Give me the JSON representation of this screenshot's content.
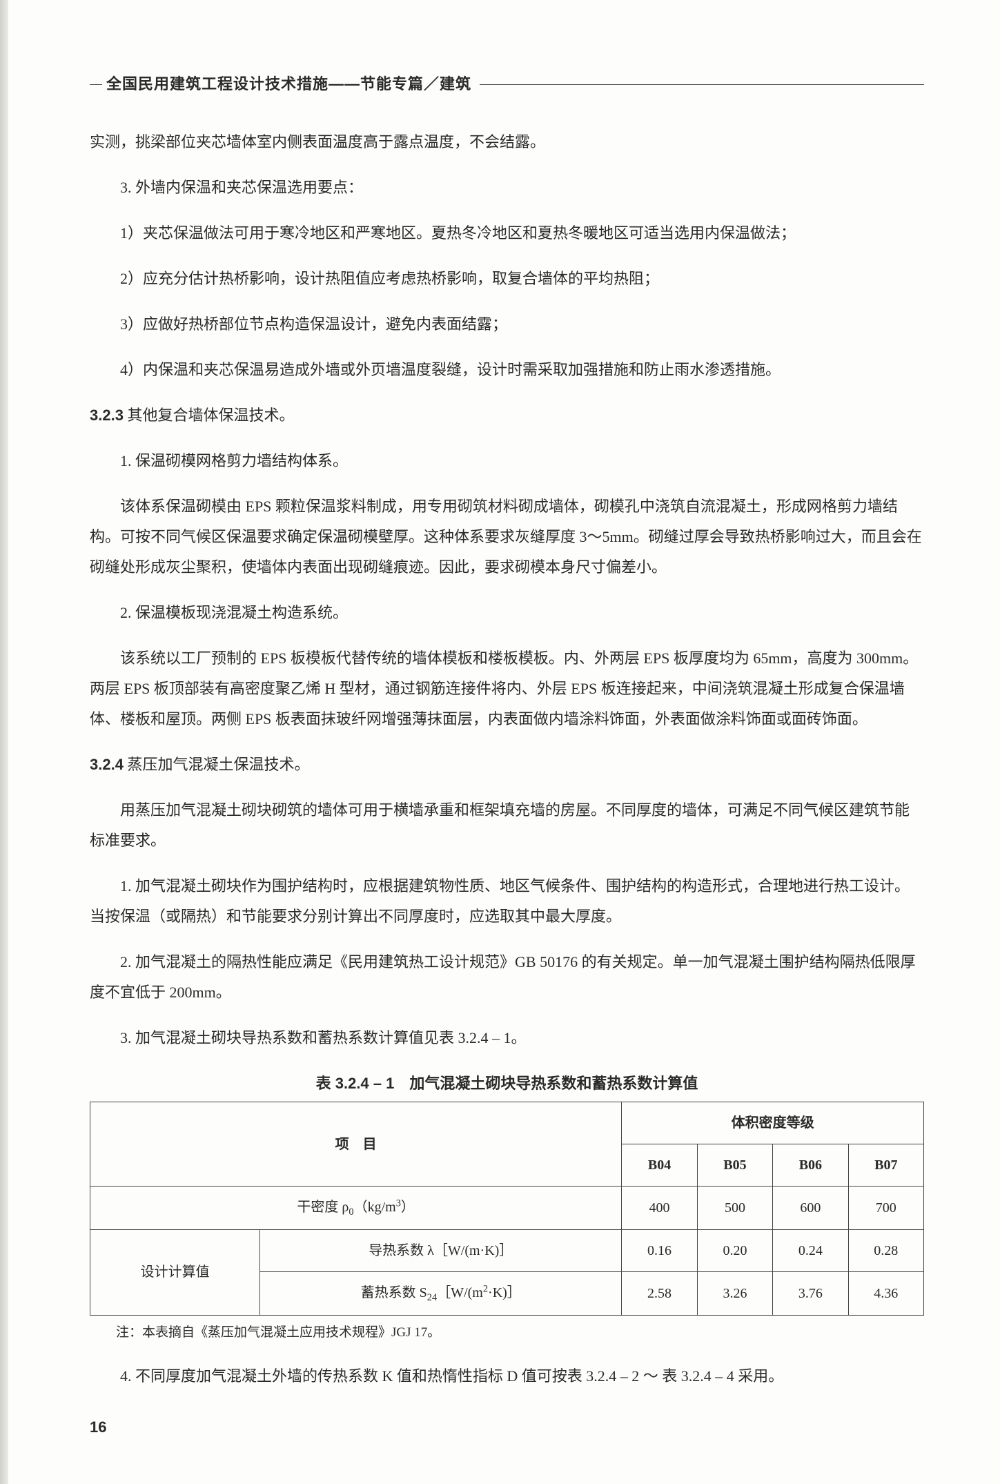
{
  "header": {
    "title": "全国民用建筑工程设计技术措施——节能专篇／建筑"
  },
  "body": {
    "p_intro": "实测，挑梁部位夹芯墙体室内侧表面温度高于露点温度，不会结露。",
    "p3": "3. 外墙内保温和夹芯保温选用要点：",
    "p3_1": "1）夹芯保温做法可用于寒冷地区和严寒地区。夏热冬冷地区和夏热冬暖地区可适当选用内保温做法；",
    "p3_2": "2）应充分估计热桥影响，设计热阻值应考虑热桥影响，取复合墙体的平均热阻；",
    "p3_3": "3）应做好热桥部位节点构造保温设计，避免内表面结露；",
    "p3_4": "4）内保温和夹芯保温易造成外墙或外页墙温度裂缝，设计时需采取加强措施和防止雨水渗透措施。",
    "s323_num": "3.2.3",
    "s323_title": " 其他复合墙体保温技术。",
    "s323_1": "1. 保温砌模网格剪力墙结构体系。",
    "s323_1_body": "该体系保温砌模由 EPS 颗粒保温浆料制成，用专用砌筑材料砌成墙体，砌模孔中浇筑自流混凝土，形成网格剪力墙结构。可按不同气候区保温要求确定保温砌模壁厚。这种体系要求灰缝厚度 3～5mm。砌缝过厚会导致热桥影响过大，而且会在砌缝处形成灰尘聚积，使墙体内表面出现砌缝痕迹。因此，要求砌模本身尺寸偏差小。",
    "s323_2": "2. 保温模板现浇混凝土构造系统。",
    "s323_2_body": "该系统以工厂预制的 EPS 板模板代替传统的墙体模板和楼板模板。内、外两层 EPS 板厚度均为 65mm，高度为 300mm。两层 EPS 板顶部装有高密度聚乙烯 H 型材，通过钢筋连接件将内、外层 EPS 板连接起来，中间浇筑混凝土形成复合保温墙体、楼板和屋顶。两侧 EPS 板表面抹玻纤网增强薄抹面层，内表面做内墙涂料饰面，外表面做涂料饰面或面砖饰面。",
    "s324_num": "3.2.4",
    "s324_title": " 蒸压加气混凝土保温技术。",
    "s324_intro": "用蒸压加气混凝土砌块砌筑的墙体可用于横墙承重和框架填充墙的房屋。不同厚度的墙体，可满足不同气候区建筑节能标准要求。",
    "s324_1": "1. 加气混凝土砌块作为围护结构时，应根据建筑物性质、地区气候条件、围护结构的构造形式，合理地进行热工设计。当按保温（或隔热）和节能要求分别计算出不同厚度时，应选取其中最大厚度。",
    "s324_2": "2. 加气混凝土的隔热性能应满足《民用建筑热工设计规范》GB 50176 的有关规定。单一加气混凝土围护结构隔热低限厚度不宜低于 200mm。",
    "s324_3": "3. 加气混凝土砌块导热系数和蓄热系数计算值见表 3.2.4 – 1。",
    "s324_4": "4. 不同厚度加气混凝土外墙的传热系数 K 值和热惰性指标 D 值可按表 3.2.4 – 2 ～ 表 3.2.4 – 4 采用。"
  },
  "table": {
    "title": "表 3.2.4 – 1　加气混凝土砌块导热系数和蓄热系数计算值",
    "col_item": "项　目",
    "col_density_grade": "体积密度等级",
    "grades": [
      "B04",
      "B05",
      "B06",
      "B07"
    ],
    "row_density_label_html": "干密度 <span class='ital'>ρ</span><span class='sub'>0</span>（kg/m<span class='sup'>3</span>）",
    "row_density_values": [
      "400",
      "500",
      "600",
      "700"
    ],
    "design_label": "设计计算值",
    "row_lambda_label_html": "导热系数 λ［W/(m·K)］",
    "row_lambda_values": [
      "0.16",
      "0.20",
      "0.24",
      "0.28"
    ],
    "row_s24_label_html": "蓄热系数 <span class='ital'>S</span><span class='sub'>24</span>［W/(m<span class='sup'>2</span>·K)］",
    "row_s24_values": [
      "2.58",
      "3.26",
      "3.76",
      "4.36"
    ],
    "note": "注：本表摘自《蒸压加气混凝土应用技术规程》JGJ 17。",
    "border_color": "#444444",
    "font_size_pt": 15
  },
  "page_number": "16",
  "colors": {
    "text": "#2a2a2a",
    "page_bg": "#fdfdfb",
    "rule": "#555555"
  }
}
